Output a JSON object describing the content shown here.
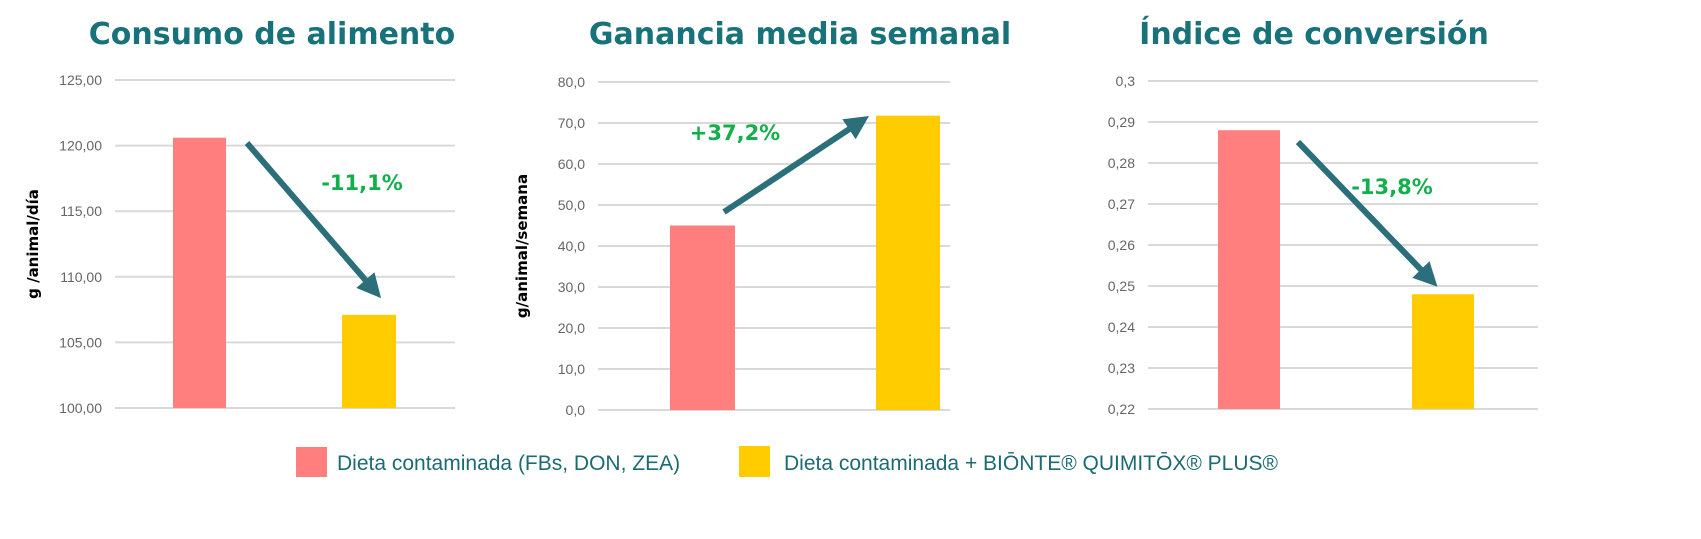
{
  "colors": {
    "series1": "#ff7f7f",
    "series2": "#ffcc00",
    "title": "#17727a",
    "arrow": "#2a6f7a",
    "annotation": "#12b04a",
    "grid": "#d9d9d9"
  },
  "legend": [
    {
      "label": "Dieta contaminada (FBs, DON, ZEA)"
    },
    {
      "label": "Dieta contaminada + BIŌNTE® QUIMITŌX® PLUS®"
    }
  ],
  "chart_data": [
    {
      "type": "bar",
      "title": "Consumo de alimento",
      "ylabel": "g /animal/día",
      "ylim": [
        100,
        125
      ],
      "ticks": [
        "100,00",
        "105,00",
        "110,00",
        "115,00",
        "120,00",
        "125,00"
      ],
      "tick_values": [
        100,
        105,
        110,
        115,
        120,
        125
      ],
      "series": [
        {
          "name": "Dieta contaminada (FBs, DON, ZEA)",
          "values": [
            120.6
          ]
        },
        {
          "name": "Dieta contaminada + BIŌNTE® QUIMITŌX® PLUS®",
          "values": [
            107.1
          ]
        }
      ],
      "annotation": "-11,1%",
      "trend": "down",
      "grid": true
    },
    {
      "type": "bar",
      "title": "Ganancia media semanal",
      "ylabel": "g/animal/semana",
      "ylim": [
        0,
        80
      ],
      "ticks": [
        "0,0",
        "10,0",
        "20,0",
        "30,0",
        "40,0",
        "50,0",
        "60,0",
        "70,0",
        "80,0"
      ],
      "tick_values": [
        0,
        10,
        20,
        30,
        40,
        50,
        60,
        70,
        80
      ],
      "series": [
        {
          "name": "Dieta contaminada (FBs, DON, ZEA)",
          "values": [
            45.0
          ]
        },
        {
          "name": "Dieta contaminada + BIŌNTE® QUIMITŌX® PLUS®",
          "values": [
            71.8
          ]
        }
      ],
      "annotation": "+37,2%",
      "trend": "up",
      "grid": true
    },
    {
      "type": "bar",
      "title": "Índice de conversión",
      "ylabel": "",
      "ylim": [
        0.22,
        0.3
      ],
      "ticks": [
        "0,22",
        "0,23",
        "0,24",
        "0,25",
        "0,26",
        "0,27",
        "0,28",
        "0,29",
        "0,3"
      ],
      "tick_values": [
        0.22,
        0.23,
        0.24,
        0.25,
        0.26,
        0.27,
        0.28,
        0.29,
        0.3
      ],
      "series": [
        {
          "name": "Dieta contaminada (FBs, DON, ZEA)",
          "values": [
            0.288
          ]
        },
        {
          "name": "Dieta contaminada + BIŌNTE® QUIMITŌX® PLUS®",
          "values": [
            0.248
          ]
        }
      ],
      "annotation": "-13,8%",
      "trend": "down",
      "grid": true
    }
  ]
}
